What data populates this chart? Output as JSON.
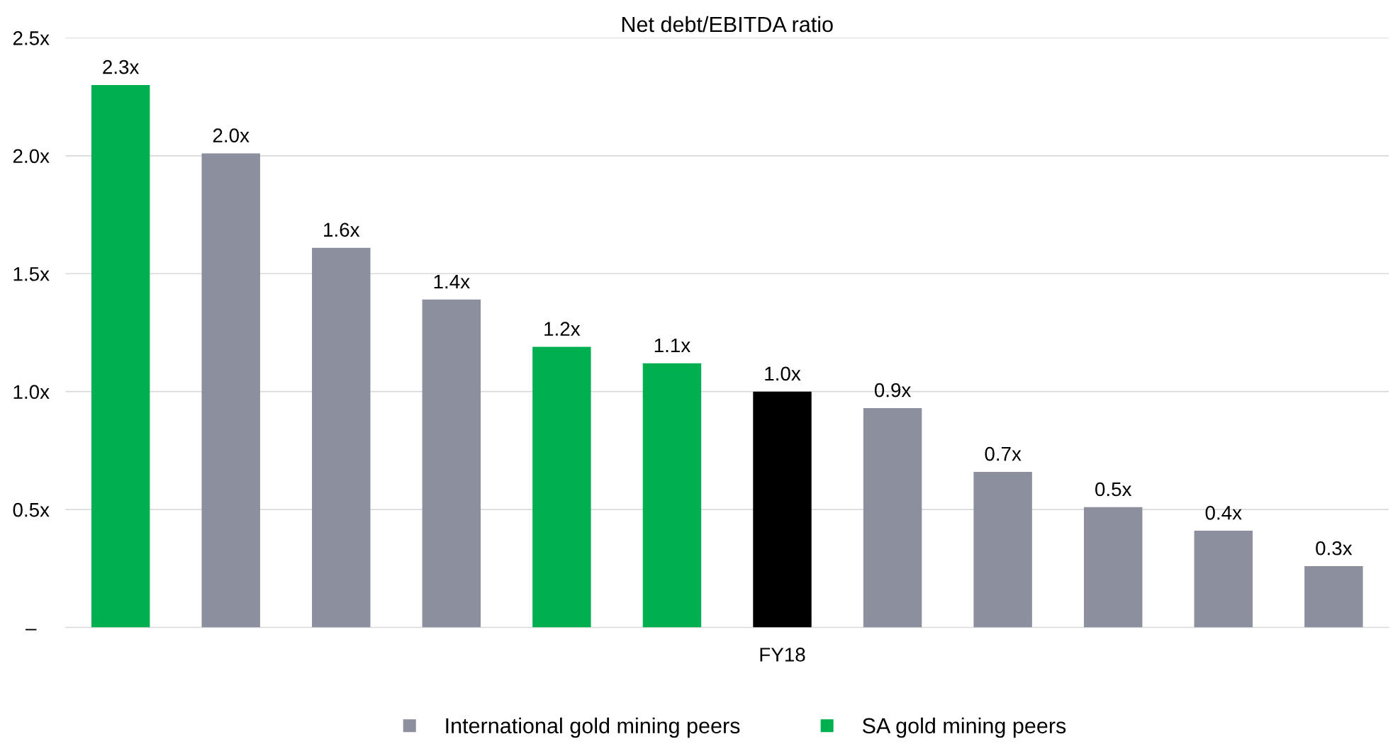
{
  "chart_data": {
    "type": "bar",
    "title": "Net debt/EBITDA ratio",
    "categories": [
      null,
      null,
      null,
      null,
      null,
      null,
      "FY18",
      null,
      null,
      null,
      null,
      null
    ],
    "series": [
      {
        "name": "International gold mining peers",
        "color": "#8c8f9e",
        "values": [
          null,
          2.01,
          1.61,
          1.39,
          null,
          null,
          null,
          0.93,
          0.66,
          0.51,
          0.41,
          0.26
        ],
        "value_labels": [
          null,
          "2.0x",
          "1.6x",
          "1.4x",
          null,
          null,
          null,
          "0.9x",
          "0.7x",
          "0.5x",
          "0.4x",
          "0.3x"
        ]
      },
      {
        "name": "SA gold mining peers",
        "color": "#00b050",
        "values": [
          2.3,
          null,
          null,
          null,
          1.19,
          1.12,
          null,
          null,
          null,
          null,
          null,
          null
        ],
        "value_labels": [
          "2.3x",
          null,
          null,
          null,
          "1.2x",
          "1.1x",
          null,
          null,
          null,
          null,
          null,
          null
        ]
      },
      {
        "color": "#000000",
        "values": [
          null,
          null,
          null,
          null,
          null,
          null,
          1.0,
          null,
          null,
          null,
          null,
          null
        ],
        "value_labels": [
          null,
          null,
          null,
          null,
          null,
          null,
          "1.0x",
          null,
          null,
          null,
          null,
          null
        ]
      }
    ],
    "ylim": [
      0,
      2.5
    ],
    "yticks": [
      {
        "value": 0,
        "label": "–"
      },
      {
        "value": 0.5,
        "label": "0.5x"
      },
      {
        "value": 1.0,
        "label": "1.0x"
      },
      {
        "value": 1.5,
        "label": "1.5x"
      },
      {
        "value": 2.0,
        "label": "2.0x"
      },
      {
        "value": 2.5,
        "label": "2.5x"
      }
    ],
    "grid": "y",
    "legend": "bottom"
  }
}
